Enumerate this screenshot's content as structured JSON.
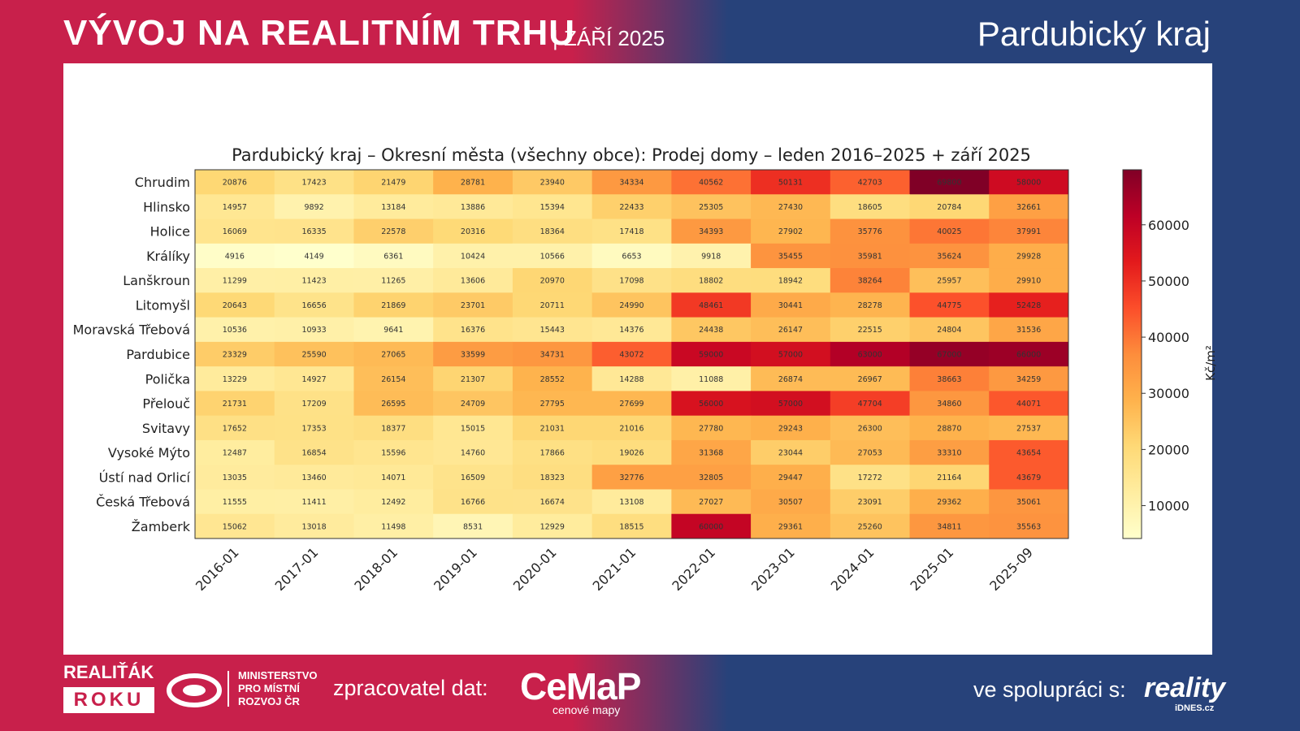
{
  "header": {
    "title": "VÝVOJ NA REALITNÍM TRHU",
    "subtitle": "| ZÁŘÍ 2025",
    "region": "Pardubický kraj"
  },
  "chart_data": {
    "type": "heatmap",
    "title": "Pardubický kraj – Okresní města (všechny obce): Prodej domy – leden 2016–2025 + září 2025",
    "x": [
      "2016-01",
      "2017-01",
      "2018-01",
      "2019-01",
      "2020-01",
      "2021-01",
      "2022-01",
      "2023-01",
      "2024-01",
      "2025-01",
      "2025-09"
    ],
    "y": [
      "Chrudim",
      "Hlinsko",
      "Holice",
      "Králíky",
      "Lanškroun",
      "Litomyšl",
      "Moravská Třebová",
      "Pardubice",
      "Polička",
      "Přelouč",
      "Svitavy",
      "Vysoké Mýto",
      "Ústí nad Orlicí",
      "Česká Třebová",
      "Žamberk"
    ],
    "values": [
      [
        20876,
        17423,
        21479,
        28781,
        23940,
        34334,
        40562,
        50131,
        42703,
        69800,
        58000
      ],
      [
        14957,
        9892,
        13184,
        13886,
        15394,
        22433,
        25305,
        27430,
        18605,
        20784,
        32661
      ],
      [
        16069,
        16335,
        22578,
        20316,
        18364,
        17418,
        34393,
        27902,
        35776,
        40025,
        37991
      ],
      [
        4916,
        4149,
        6361,
        10424,
        10566,
        6653,
        9918,
        35455,
        35981,
        35624,
        29928
      ],
      [
        11299,
        11423,
        11265,
        13606,
        20970,
        17098,
        18802,
        18942,
        38264,
        25957,
        29910
      ],
      [
        20643,
        16656,
        21869,
        23701,
        20711,
        24990,
        48461,
        30441,
        28278,
        44775,
        52428
      ],
      [
        10536,
        10933,
        9641,
        16376,
        15443,
        14376,
        24438,
        26147,
        22515,
        24804,
        31536
      ],
      [
        23329,
        25590,
        27065,
        33599,
        34731,
        43072,
        59000,
        57000,
        63000,
        67000,
        66000
      ],
      [
        13229,
        14927,
        26154,
        21307,
        28552,
        14288,
        11088,
        26874,
        26967,
        38663,
        34259
      ],
      [
        21731,
        17209,
        26595,
        24709,
        27795,
        27699,
        56000,
        57000,
        47704,
        34860,
        44071
      ],
      [
        17652,
        17353,
        18377,
        15015,
        21031,
        21016,
        27780,
        29243,
        26300,
        28870,
        27537
      ],
      [
        12487,
        16854,
        15596,
        14760,
        17866,
        19026,
        31368,
        23044,
        27053,
        33310,
        43654
      ],
      [
        13035,
        13460,
        14071,
        16509,
        18323,
        32776,
        32805,
        29447,
        17272,
        21164,
        43679
      ],
      [
        11555,
        11411,
        12492,
        16766,
        16674,
        13108,
        27027,
        30507,
        23091,
        29362,
        35061
      ],
      [
        15062,
        13018,
        11498,
        8531,
        12929,
        18515,
        60000,
        29361,
        25260,
        34811,
        35563
      ]
    ],
    "colormap": "YlOrRd",
    "clim": [
      4149,
      69800
    ],
    "colorbar_ticks": [
      10000,
      20000,
      30000,
      40000,
      50000,
      60000
    ],
    "colorbar_label": "Kč/m²"
  },
  "footer": {
    "award_top": "REALIŤÁK",
    "award_bottom": "ROKU",
    "ministry": [
      "MINISTERSTVO",
      "PRO MÍSTNÍ",
      "ROZVOJ ČR"
    ],
    "processor_label": "zpracovatel dat:",
    "processor": "CeMaP",
    "processor_sub": "cenové mapy",
    "partner_label": "ve spolupráci s:",
    "partner": "reality",
    "partner_sub": "iDNES.cz"
  }
}
